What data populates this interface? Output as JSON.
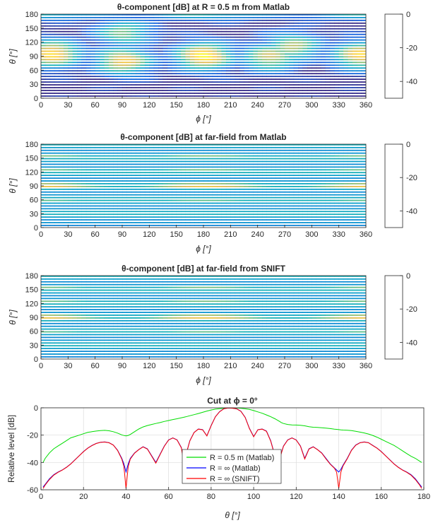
{
  "chart_data": [
    {
      "type": "heatmap",
      "title": "θ-component [dB] at R = 0.5 m from Matlab",
      "xlabel": "ϕ [°]",
      "ylabel": "θ [°]",
      "xlim": [
        0,
        360
      ],
      "ylim": [
        0,
        180
      ],
      "xticks": [
        "0",
        "30",
        "60",
        "90",
        "120",
        "150",
        "180",
        "210",
        "240",
        "270",
        "300",
        "330",
        "360"
      ],
      "yticks": [
        "0",
        "30",
        "60",
        "90",
        "120",
        "150",
        "180"
      ],
      "colorbar_ticks": [
        "0",
        "-20",
        "-40"
      ],
      "colorbar_range": [
        -50,
        0
      ],
      "colormap": "parula",
      "hot_regions": [
        {
          "phi": 12,
          "theta": 95,
          "level": 0.95
        },
        {
          "phi": 90,
          "theta": 80,
          "level": 0.85
        },
        {
          "phi": 90,
          "theta": 140,
          "level": 0.6
        },
        {
          "phi": 178,
          "theta": 90,
          "level": 1.0
        },
        {
          "phi": 250,
          "theta": 88,
          "level": 0.75
        },
        {
          "phi": 275,
          "theta": 110,
          "level": 0.7
        },
        {
          "phi": 350,
          "theta": 92,
          "level": 0.9
        }
      ]
    },
    {
      "type": "heatmap",
      "title": "θ-component [dB] at far-field from Matlab",
      "xlabel": "ϕ [°]",
      "ylabel": "θ [°]",
      "xlim": [
        0,
        360
      ],
      "ylim": [
        0,
        180
      ],
      "xticks": [
        "0",
        "30",
        "60",
        "90",
        "120",
        "150",
        "180",
        "210",
        "240",
        "270",
        "300",
        "330",
        "360"
      ],
      "yticks": [
        "0",
        "30",
        "60",
        "90",
        "120",
        "150",
        "180"
      ],
      "colorbar_ticks": [
        "0",
        "-20",
        "-40"
      ],
      "colorbar_range": [
        -50,
        0
      ],
      "colormap": "parula",
      "bright_bands_theta": [
        90,
        60,
        125,
        155
      ]
    },
    {
      "type": "heatmap",
      "title": "θ-component [dB] at far-field from SNIFT",
      "xlabel": "ϕ [°]",
      "ylabel": "θ [°]",
      "xlim": [
        0,
        360
      ],
      "ylim": [
        0,
        180
      ],
      "xticks": [
        "0",
        "30",
        "60",
        "90",
        "120",
        "150",
        "180",
        "210",
        "240",
        "270",
        "300",
        "330",
        "360"
      ],
      "yticks": [
        "0",
        "30",
        "60",
        "90",
        "120",
        "150",
        "180"
      ],
      "colorbar_ticks": [
        "0",
        "-20",
        "-40"
      ],
      "colorbar_range": [
        -50,
        0
      ],
      "colormap": "parula",
      "bright_bands_theta": [
        90,
        60,
        125,
        155
      ]
    },
    {
      "type": "line",
      "title": "Cut at ϕ = 0°",
      "xlabel": "θ [°]",
      "ylabel": "Relative level [dB]",
      "xlim": [
        0,
        180
      ],
      "ylim": [
        -60,
        0
      ],
      "xticks": [
        "0",
        "20",
        "40",
        "60",
        "80",
        "100",
        "120",
        "140",
        "160",
        "180"
      ],
      "yticks": [
        "0",
        "-20",
        "-40",
        "-60"
      ],
      "grid": true,
      "legend": "lower-center",
      "x": [
        1,
        2,
        4,
        6,
        8,
        10,
        12,
        14,
        16,
        18,
        20,
        22,
        24,
        26,
        28,
        30,
        32,
        34,
        36,
        38,
        39,
        40,
        41,
        42,
        44,
        46,
        48,
        50,
        52,
        54,
        56,
        58,
        60,
        62,
        64,
        66,
        67,
        68,
        70,
        72,
        74,
        76,
        78,
        80,
        82,
        84,
        86,
        88,
        90,
        92,
        94,
        96,
        98,
        100,
        102,
        104,
        106,
        108,
        110,
        112,
        113,
        114,
        116,
        118,
        120,
        122,
        124,
        126,
        128,
        130,
        132,
        134,
        136,
        138,
        139,
        140,
        141,
        142,
        144,
        146,
        148,
        150,
        152,
        154,
        156,
        158,
        160,
        162,
        164,
        166,
        168,
        170,
        172,
        174,
        176,
        178,
        179
      ],
      "series": [
        {
          "name": "R = 0.5 m (Matlab)",
          "color": "#00dd00",
          "values": [
            -40,
            -37,
            -33,
            -30,
            -28,
            -26,
            -24,
            -22,
            -21,
            -20,
            -19,
            -18,
            -17.5,
            -17,
            -16.7,
            -16.5,
            -16.8,
            -17.5,
            -18.5,
            -19.8,
            -20.3,
            -20.6,
            -20.2,
            -19.5,
            -17.5,
            -15.5,
            -14,
            -13,
            -12.2,
            -11.5,
            -10.8,
            -10,
            -9.3,
            -8.6,
            -8,
            -7.3,
            -7,
            -6.6,
            -5.8,
            -5,
            -4.2,
            -3.3,
            -2.4,
            -1.6,
            -1,
            -0.6,
            -0.3,
            -0.1,
            0,
            -0.1,
            -0.3,
            -0.7,
            -1.2,
            -2,
            -3,
            -4,
            -5.2,
            -6.5,
            -8,
            -9.8,
            -10.8,
            -11.5,
            -12.2,
            -12.5,
            -12.6,
            -12.8,
            -13.2,
            -13.8,
            -14.2,
            -14.4,
            -14.6,
            -14.9,
            -15.2,
            -15.6,
            -15.8,
            -16,
            -16.2,
            -16.3,
            -16.4,
            -16.7,
            -17.2,
            -17.8,
            -18.4,
            -19.2,
            -20.2,
            -21.5,
            -23,
            -24.5,
            -26,
            -27.5,
            -29.5,
            -31.5,
            -33.5,
            -35.5,
            -37,
            -39,
            -40
          ]
        },
        {
          "name": "R = ∞ (Matlab)",
          "color": "#0000ff",
          "values": [
            -58,
            -56,
            -52,
            -49,
            -47,
            -45.5,
            -43.5,
            -41,
            -38,
            -35,
            -32,
            -29.5,
            -27.5,
            -26,
            -25.2,
            -25,
            -25.5,
            -27.2,
            -31,
            -37,
            -41,
            -47,
            -41,
            -37,
            -33,
            -30.5,
            -28.5,
            -30,
            -35,
            -40,
            -34,
            -28,
            -23.5,
            -22,
            -23.5,
            -29,
            -38,
            -35,
            -24,
            -18,
            -15.5,
            -16,
            -20.5,
            -13,
            -6.5,
            -2.8,
            -0.6,
            -0.1,
            -0.2,
            -0.7,
            -2.5,
            -7,
            -15,
            -21,
            -16,
            -15.5,
            -17,
            -24,
            -35,
            -38,
            -33,
            -28,
            -23.5,
            -22,
            -23.5,
            -28,
            -37,
            -30,
            -28.5,
            -30.5,
            -33,
            -37,
            -41,
            -44,
            -45.5,
            -47,
            -45,
            -42,
            -37,
            -31,
            -27.2,
            -25.5,
            -25,
            -25.5,
            -27.5,
            -29.5,
            -32,
            -35,
            -38,
            -41,
            -43.5,
            -45.5,
            -47,
            -49,
            -52,
            -56,
            -58
          ]
        },
        {
          "name": "R = ∞ (SNIFT)",
          "color": "#ff0000",
          "values": [
            -59,
            -56.5,
            -52.5,
            -49.3,
            -47.2,
            -45.6,
            -43.6,
            -41.1,
            -38.1,
            -35.1,
            -32.1,
            -29.6,
            -27.6,
            -26.1,
            -25.3,
            -25.1,
            -25.6,
            -27.3,
            -31.2,
            -37.5,
            -43,
            -59,
            -43,
            -37.5,
            -33.2,
            -30.6,
            -28.6,
            -30.2,
            -35.3,
            -40.5,
            -34.3,
            -28.2,
            -23.6,
            -22.1,
            -23.6,
            -29.3,
            -38.5,
            -35.3,
            -24.2,
            -18.1,
            -15.6,
            -16.1,
            -20.6,
            -13.1,
            -6.6,
            -2.9,
            -0.7,
            -0.1,
            -0.3,
            -0.8,
            -2.6,
            -7.1,
            -15.2,
            -21.2,
            -16.1,
            -15.6,
            -17.2,
            -24.3,
            -35.4,
            -38.5,
            -33.3,
            -28.2,
            -23.6,
            -22.1,
            -23.6,
            -28.2,
            -37.5,
            -30.2,
            -28.6,
            -30.6,
            -33.2,
            -37.4,
            -41.3,
            -44.3,
            -47,
            -59,
            -47,
            -42.5,
            -37.3,
            -31.2,
            -27.4,
            -25.6,
            -25.1,
            -25.6,
            -27.6,
            -29.6,
            -32.1,
            -35.1,
            -38.1,
            -41.1,
            -43.6,
            -45.6,
            -47.2,
            -49.3,
            -52.5,
            -56.5,
            -59
          ]
        }
      ]
    }
  ]
}
